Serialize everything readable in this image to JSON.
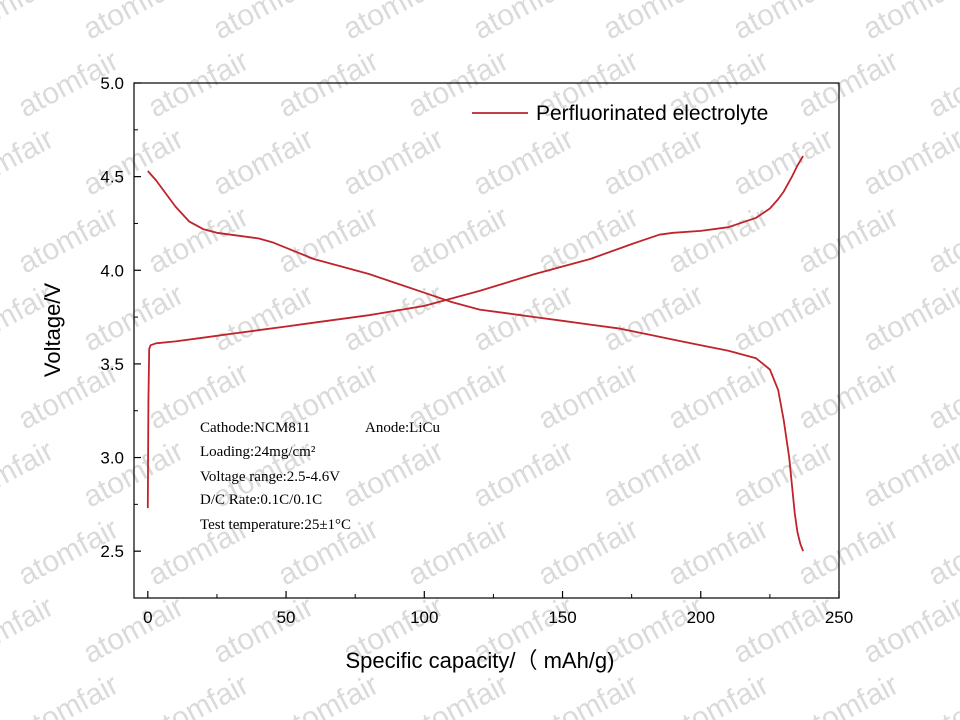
{
  "chart_data": {
    "type": "line",
    "title": "",
    "xlabel": "Specific capacity/（ mAh/g)",
    "ylabel": "Voltage/V",
    "xlim": [
      -5,
      250
    ],
    "ylim": [
      2.25,
      5.0
    ],
    "xticks": [
      "0",
      "50",
      "100",
      "150",
      "200",
      "250"
    ],
    "xtick_values": [
      0,
      50,
      100,
      150,
      200,
      250
    ],
    "yticks": [
      "2.5",
      "3.0",
      "3.5",
      "4.0",
      "4.5",
      "5.0"
    ],
    "ytick_values": [
      2.5,
      3.0,
      3.5,
      4.0,
      4.5,
      5.0
    ],
    "grid": false,
    "legend_position": "top-right",
    "series": [
      {
        "name": "Perfluorinated electrolyte",
        "color": "#c0232b",
        "segments": [
          {
            "x": [
              0,
              0.2,
              0.5,
              1,
              3,
              10,
              20,
              30,
              40,
              50,
              60,
              80,
              100,
              120,
              140,
              160,
              175,
              185,
              190,
              200,
              210,
              220,
              225,
              228,
              230,
              233,
              235,
              237
            ],
            "y": [
              2.73,
              3.3,
              3.58,
              3.6,
              3.61,
              3.62,
              3.64,
              3.66,
              3.68,
              3.7,
              3.72,
              3.76,
              3.81,
              3.89,
              3.98,
              4.06,
              4.14,
              4.19,
              4.2,
              4.21,
              4.23,
              4.28,
              4.33,
              4.38,
              4.42,
              4.5,
              4.56,
              4.61
            ]
          },
          {
            "x": [
              0,
              3,
              6,
              10,
              15,
              20,
              25,
              30,
              40,
              45,
              50,
              60,
              70,
              80,
              90,
              100,
              110,
              120,
              130,
              140,
              150,
              160,
              170,
              180,
              190,
              200,
              210,
              220,
              225,
              228,
              230,
              232,
              233,
              234,
              235,
              236,
              237
            ],
            "y": [
              4.53,
              4.48,
              4.42,
              4.34,
              4.26,
              4.22,
              4.2,
              4.19,
              4.17,
              4.15,
              4.12,
              4.06,
              4.02,
              3.98,
              3.93,
              3.88,
              3.83,
              3.79,
              3.77,
              3.75,
              3.73,
              3.71,
              3.69,
              3.66,
              3.63,
              3.6,
              3.57,
              3.53,
              3.47,
              3.36,
              3.2,
              3.0,
              2.85,
              2.7,
              2.6,
              2.54,
              2.5
            ]
          }
        ]
      }
    ],
    "annotations": [
      "Cathode:NCM811",
      "Anode:LiCu",
      "Loading:24mg/cm²",
      "Voltage range:2.5-4.6V",
      "D/C Rate:0.1C/0.1C",
      "Test temperature:25±1°C"
    ]
  },
  "watermark": "atomfair"
}
